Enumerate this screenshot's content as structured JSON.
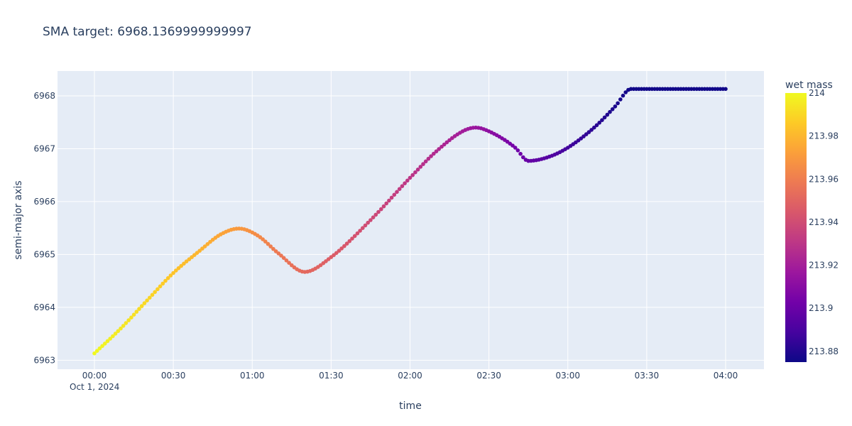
{
  "chart_data": {
    "type": "scatter",
    "title": "SMA target: 6968.1369999999997",
    "xlabel": "time",
    "ylabel": "semi-major axis",
    "x_start": "2024-10-01T00:00",
    "x_end": "2024-10-01T04:00",
    "x_ticks": [
      "00:00",
      "00:30",
      "01:00",
      "01:30",
      "02:00",
      "02:30",
      "03:00",
      "03:30",
      "04:00"
    ],
    "x_tick_date": "Oct 1, 2024",
    "y_ticks": [
      6963,
      6964,
      6965,
      6966,
      6967,
      6968
    ],
    "ylim": [
      6962.83,
      6968.47
    ],
    "grid": true,
    "plot_background": "#e5ecf6",
    "colorbar": {
      "title": "wet mass",
      "range": [
        213.875,
        214.0
      ],
      "ticks": [
        214,
        213.98,
        213.96,
        213.94,
        213.92,
        213.9,
        213.88
      ],
      "colorscale": [
        "#0d0887",
        "#46039f",
        "#7201a8",
        "#9c179e",
        "#bd3786",
        "#d8576b",
        "#ed7953",
        "#fb9f3a",
        "#fdca26",
        "#f0f921"
      ]
    },
    "series": [
      {
        "points": [
          {
            "t": "00:00",
            "sma": 6963.13,
            "mass": 214.0
          },
          {
            "t": "00:10",
            "sma": 6963.6,
            "mass": 213.995
          },
          {
            "t": "00:20",
            "sma": 6964.13,
            "mass": 213.99
          },
          {
            "t": "00:30",
            "sma": 6964.65,
            "mass": 213.984
          },
          {
            "t": "00:40",
            "sma": 6965.07,
            "mass": 213.979
          },
          {
            "t": "00:48",
            "sma": 6965.38,
            "mass": 213.974
          },
          {
            "t": "00:55",
            "sma": 6965.49,
            "mass": 213.97
          },
          {
            "t": "01:02",
            "sma": 6965.36,
            "mass": 213.965
          },
          {
            "t": "01:10",
            "sma": 6965.02,
            "mass": 213.958
          },
          {
            "t": "01:20",
            "sma": 6964.67,
            "mass": 213.952
          },
          {
            "t": "01:30",
            "sma": 6964.95,
            "mass": 213.947
          },
          {
            "t": "01:45",
            "sma": 6965.65,
            "mass": 213.939
          },
          {
            "t": "02:00",
            "sma": 6966.45,
            "mass": 213.93
          },
          {
            "t": "02:10",
            "sma": 6966.95,
            "mass": 213.925
          },
          {
            "t": "02:20",
            "sma": 6967.33,
            "mass": 213.919
          },
          {
            "t": "02:25",
            "sma": 6967.4,
            "mass": 213.916
          },
          {
            "t": "02:30",
            "sma": 6967.33,
            "mass": 213.912
          },
          {
            "t": "02:40",
            "sma": 6967.02,
            "mass": 213.903
          },
          {
            "t": "02:45",
            "sma": 6966.77,
            "mass": 213.899
          },
          {
            "t": "02:53",
            "sma": 6966.85,
            "mass": 213.893
          },
          {
            "t": "03:00",
            "sma": 6967.02,
            "mass": 213.888
          },
          {
            "t": "03:10",
            "sma": 6967.4,
            "mass": 213.882
          },
          {
            "t": "03:18",
            "sma": 6967.8,
            "mass": 213.878
          },
          {
            "t": "03:24",
            "sma": 6968.13,
            "mass": 213.876
          },
          {
            "t": "04:00",
            "sma": 6968.13,
            "mass": 213.876
          }
        ]
      }
    ]
  }
}
